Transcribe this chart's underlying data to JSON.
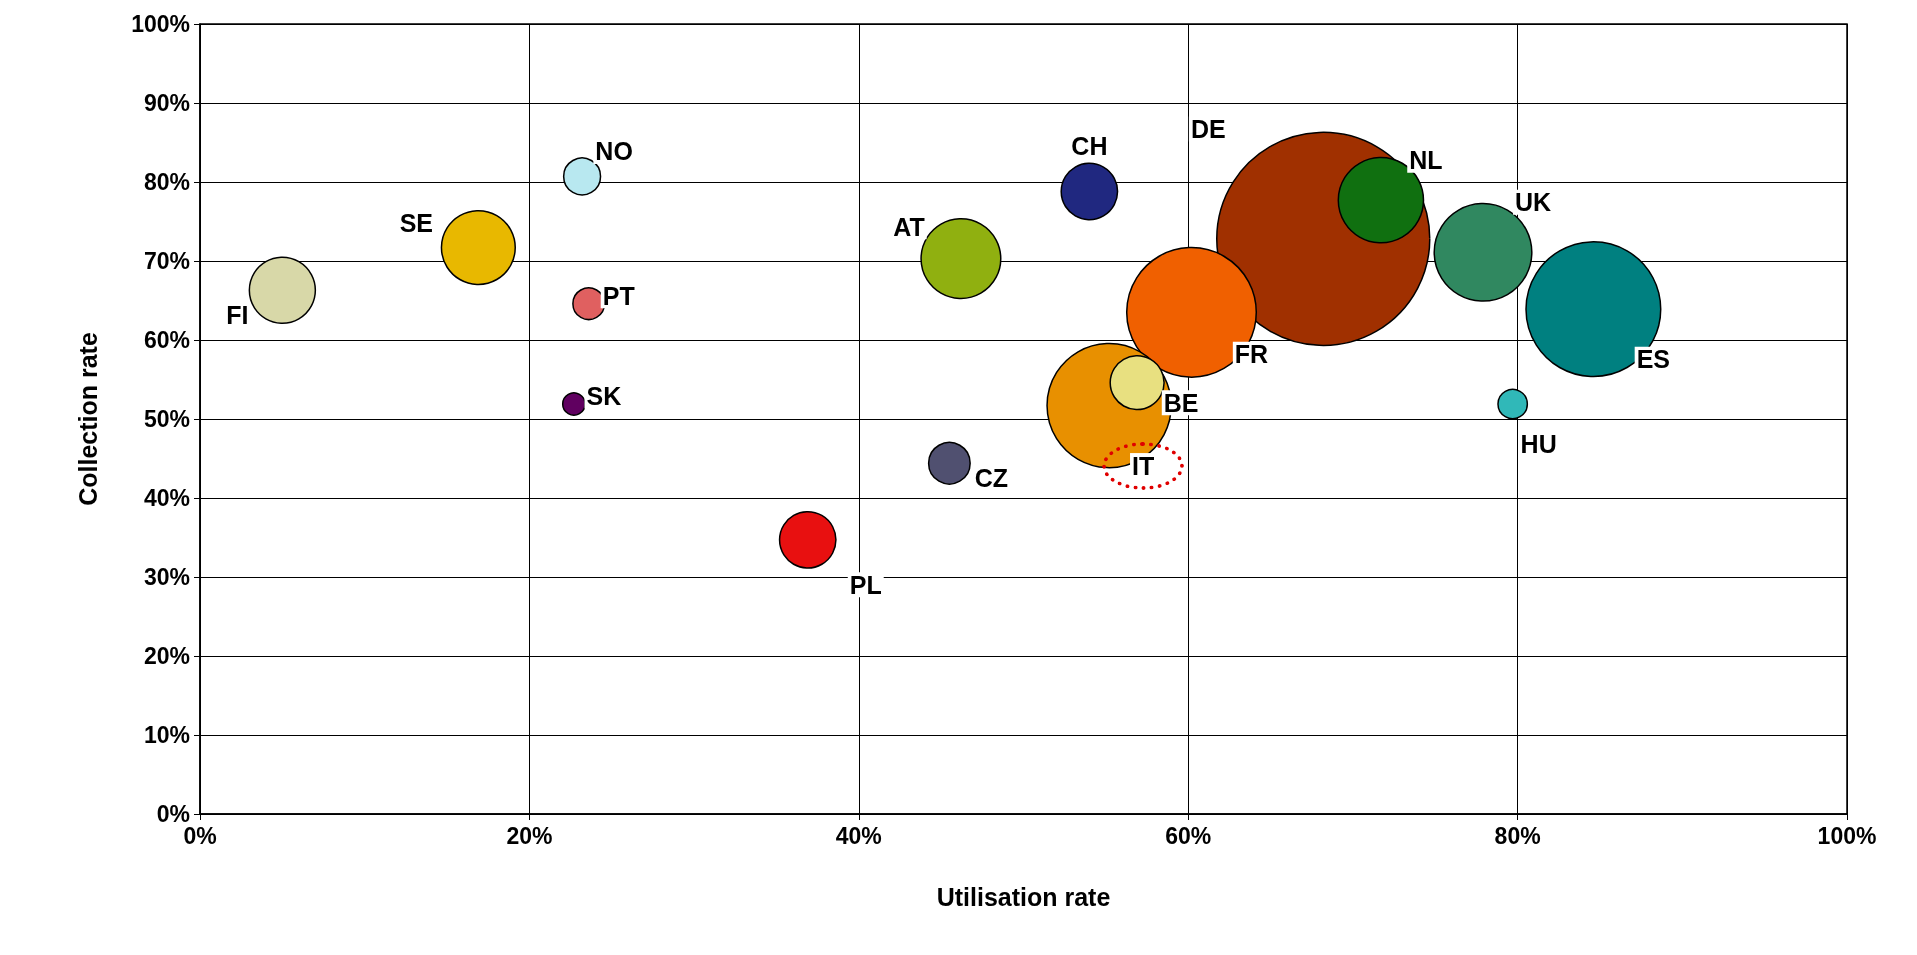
{
  "chart_data": {
    "type": "bubble",
    "xlabel": "Utilisation rate",
    "ylabel": "Collection rate",
    "xlim": [
      0,
      100
    ],
    "xticks": [
      {
        "value": 0,
        "label": "0%"
      },
      {
        "value": 20,
        "label": "20%"
      },
      {
        "value": 40,
        "label": "40%"
      },
      {
        "value": 60,
        "label": "60%"
      },
      {
        "value": 80,
        "label": "80%"
      },
      {
        "value": 100,
        "label": "100%"
      }
    ],
    "ylim": [
      0,
      100
    ],
    "yticks": [
      {
        "value": 0,
        "label": "0%"
      },
      {
        "value": 10,
        "label": "10%"
      },
      {
        "value": 20,
        "label": "20%"
      },
      {
        "value": 30,
        "label": "30%"
      },
      {
        "value": 40,
        "label": "40%"
      },
      {
        "value": 50,
        "label": "50%"
      },
      {
        "value": 60,
        "label": "60%"
      },
      {
        "value": 70,
        "label": "70%"
      },
      {
        "value": 80,
        "label": "80%"
      },
      {
        "value": 90,
        "label": "90%"
      },
      {
        "value": 100,
        "label": "100%"
      }
    ],
    "grid": true,
    "legend": false,
    "marker": "circle",
    "series": [
      {
        "name": "FI",
        "color": "#d8d8a8",
        "x": [
          5.0
        ],
        "values": [
          66.3
        ],
        "sizes": [
          0.096
        ]
      },
      {
        "name": "SE",
        "color": "#e8b800",
        "x": [
          16.9
        ],
        "values": [
          71.7
        ],
        "sizes": [
          0.12
        ]
      },
      {
        "name": "NO",
        "color": "#b8e8f0",
        "x": [
          23.2
        ],
        "values": [
          80.7
        ],
        "sizes": [
          0.03
        ]
      },
      {
        "name": "PT",
        "color": "#e06060",
        "x": [
          23.6
        ],
        "values": [
          64.6
        ],
        "sizes": [
          0.022
        ]
      },
      {
        "name": "SK",
        "color": "#600060",
        "x": [
          22.7
        ],
        "values": [
          51.9
        ],
        "sizes": [
          0.011
        ]
      },
      {
        "name": "AT",
        "color": "#90b010",
        "x": [
          46.2
        ],
        "values": [
          70.3
        ],
        "sizes": [
          0.14
        ]
      },
      {
        "name": "CH",
        "color": "#202880",
        "x": [
          54.0
        ],
        "values": [
          78.8
        ],
        "sizes": [
          0.07
        ]
      },
      {
        "name": "CZ",
        "color": "#505070",
        "x": [
          45.5
        ],
        "values": [
          44.4
        ],
        "sizes": [
          0.038
        ]
      },
      {
        "name": "PL",
        "color": "#e81010",
        "x": [
          36.9
        ],
        "values": [
          34.7
        ],
        "sizes": [
          0.07
        ]
      },
      {
        "name": "IT",
        "color": "#e89000",
        "x": [
          55.2
        ],
        "values": [
          51.7
        ],
        "sizes": [
          0.34
        ]
      },
      {
        "name": "BE",
        "color": "#e8e080",
        "x": [
          56.9
        ],
        "values": [
          54.6
        ],
        "sizes": [
          0.064
        ]
      },
      {
        "name": "FR",
        "color": "#f06000",
        "x": [
          60.2
        ],
        "values": [
          63.5
        ],
        "sizes": [
          0.37
        ]
      },
      {
        "name": "DE",
        "color": "#a03000",
        "x": [
          68.2
        ],
        "values": [
          72.8
        ],
        "sizes": [
          1
        ]
      },
      {
        "name": "NL",
        "color": "#107010",
        "x": [
          71.7
        ],
        "values": [
          77.7
        ],
        "sizes": [
          0.16
        ]
      },
      {
        "name": "UK",
        "color": "#308860",
        "x": [
          77.9
        ],
        "values": [
          71.1
        ],
        "sizes": [
          0.21
        ]
      },
      {
        "name": "ES",
        "color": "#008080",
        "x": [
          84.6
        ],
        "values": [
          63.9
        ],
        "sizes": [
          0.4
        ]
      },
      {
        "name": "HU",
        "color": "#30b8b8",
        "x": [
          79.7
        ],
        "values": [
          51.9
        ],
        "sizes": [
          0.019
        ]
      }
    ]
  }
}
